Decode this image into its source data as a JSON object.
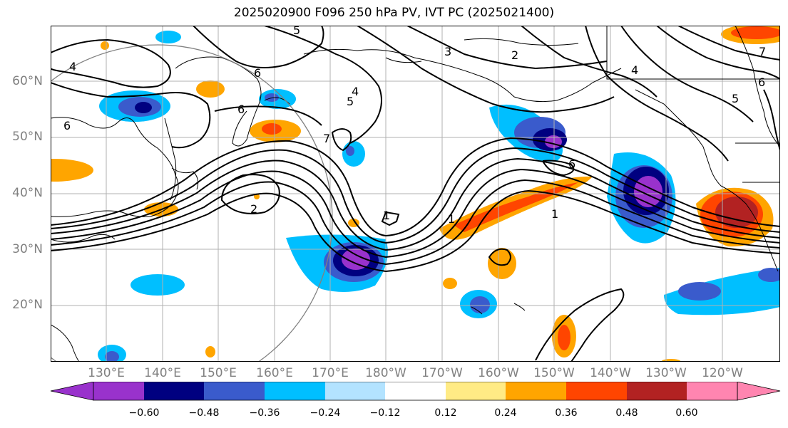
{
  "title": "2025020900 F096 250 hPa PV, IVT PC (2025021400)",
  "lat_labels": [
    "60°N",
    "50°N",
    "40°N",
    "30°N",
    "20°N"
  ],
  "lon_labels": [
    "130°E",
    "140°E",
    "150°E",
    "160°E",
    "170°E",
    "180°W",
    "170°W",
    "160°W",
    "150°W",
    "140°W",
    "130°W",
    "120°W"
  ],
  "contour_labels": [
    "5",
    "3",
    "2",
    "4",
    "6",
    "6",
    "6",
    "5",
    "4",
    "7",
    "2",
    "6",
    "1",
    "1",
    "4",
    "5",
    "6",
    "7",
    "1"
  ],
  "colorbar": {
    "ticks": [
      "−0.60",
      "−0.48",
      "−0.36",
      "−0.24",
      "−0.12",
      "0.12",
      "0.24",
      "0.36",
      "0.48",
      "0.60"
    ],
    "colors": [
      "#9932cc",
      "#000080",
      "#3a5bcc",
      "#00bfff",
      "#b3e3ff",
      "#ffffff",
      "#ffeb85",
      "#ffa500",
      "#ff4500",
      "#b22222",
      "#ff85b0",
      "#ff85b0"
    ]
  },
  "palette": {
    "grid": "#b0b0b0",
    "coast": "#000000",
    "contour": "#000000",
    "circle": "#808080"
  }
}
